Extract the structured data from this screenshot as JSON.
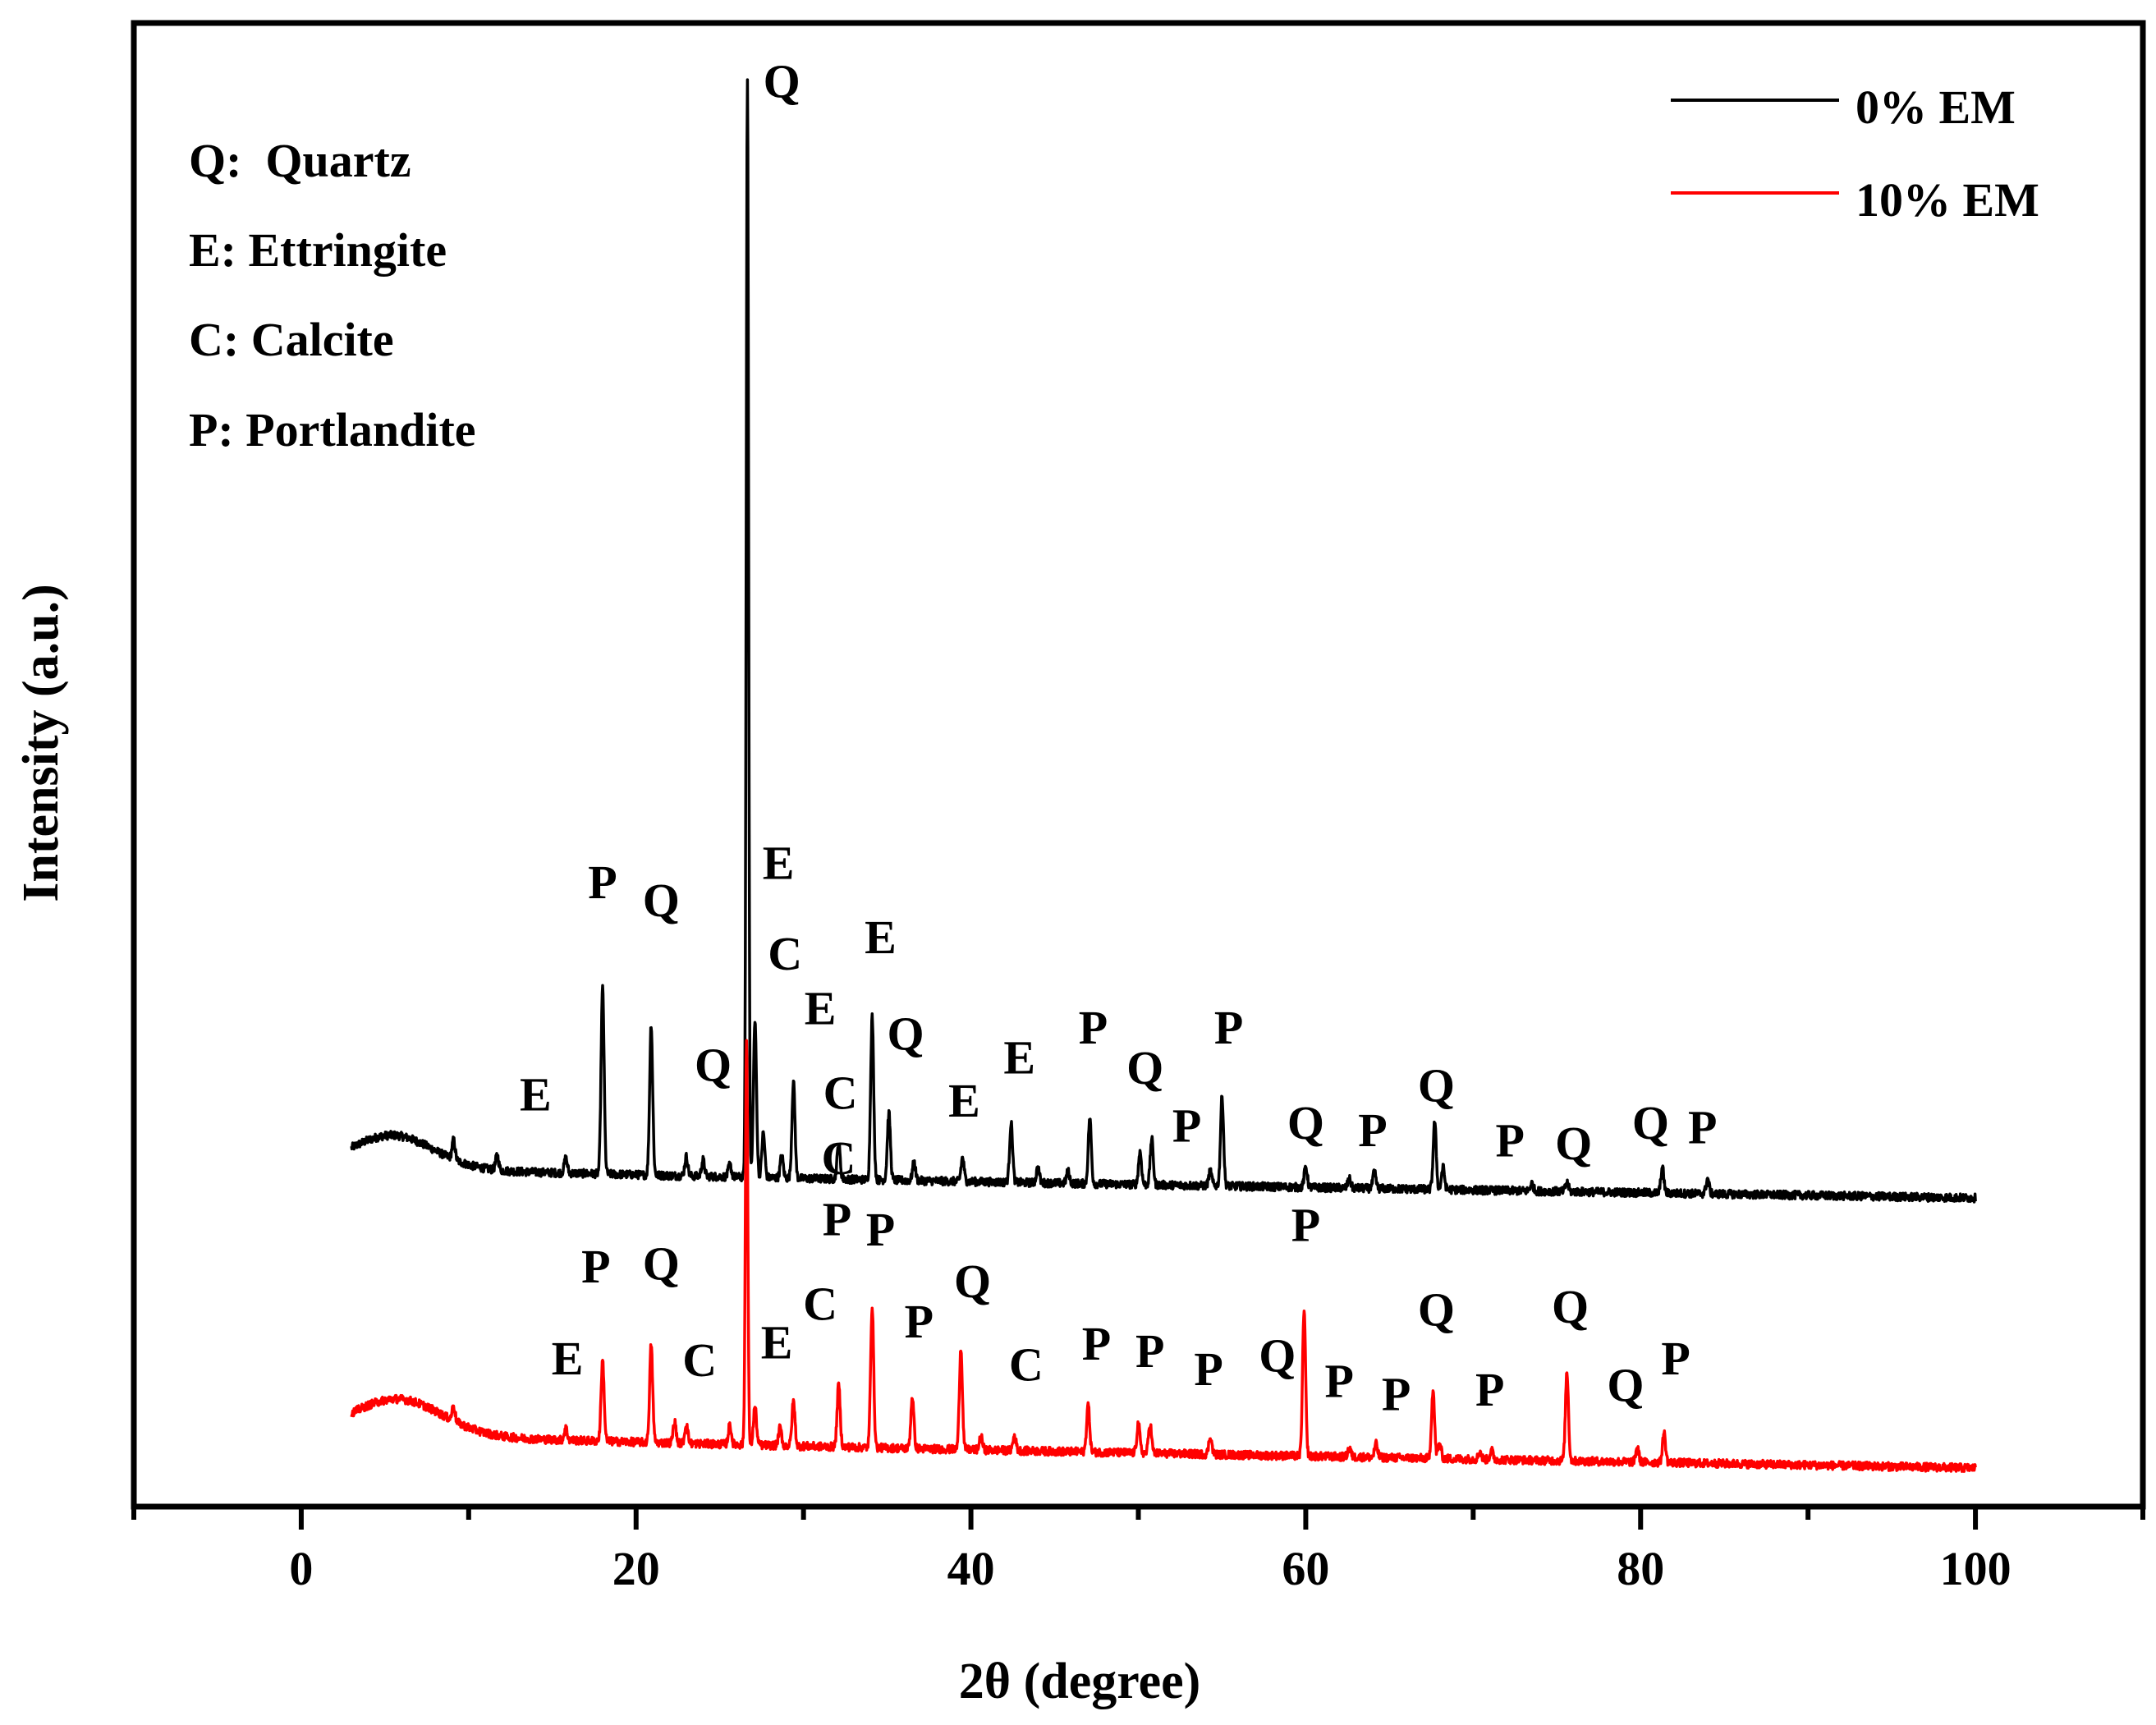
{
  "chart_data": {
    "type": "line",
    "xlabel": "2θ (degree)",
    "ylabel": "Intensity (a.u.)",
    "xlim": [
      -10,
      110
    ],
    "ylim": [
      0,
      100
    ],
    "x_ticks": [
      0,
      20,
      40,
      60,
      80,
      100
    ],
    "x_tick_labels": [
      "0",
      "20",
      "40",
      "60",
      "80",
      "100"
    ],
    "x_minor_ticks": [
      -10,
      10,
      30,
      50,
      70,
      90,
      110
    ],
    "y_ticks": "none",
    "grid": false,
    "legend_position": "top-right",
    "phase_key": [
      {
        "code": "Q",
        "text": "Q:  Quartz"
      },
      {
        "code": "E",
        "text": "E: Ettringite"
      },
      {
        "code": "C",
        "text": "C: Calcite"
      },
      {
        "code": "P",
        "text": "P: Portlandite"
      }
    ],
    "series": [
      {
        "name": "0% EM",
        "color": "#000000",
        "baseline_start": 22.5,
        "baseline_end": 20.8,
        "hump": {
          "center": 5.5,
          "height": 2.2,
          "width": 2.4
        },
        "peaks": [
          {
            "x": 9.1,
            "h": 1.3
          },
          {
            "x": 11.7,
            "h": 1.0
          },
          {
            "x": 15.8,
            "h": 1.0
          },
          {
            "x": 18.0,
            "h": 12.5
          },
          {
            "x": 20.9,
            "h": 10.2
          },
          {
            "x": 23.0,
            "h": 1.3
          },
          {
            "x": 24.0,
            "h": 1.1
          },
          {
            "x": 25.6,
            "h": 0.8
          },
          {
            "x": 26.65,
            "h": 74.0
          },
          {
            "x": 27.1,
            "h": 10.5
          },
          {
            "x": 27.6,
            "h": 3.0
          },
          {
            "x": 28.7,
            "h": 1.5
          },
          {
            "x": 29.4,
            "h": 6.5
          },
          {
            "x": 32.1,
            "h": 2.4
          },
          {
            "x": 34.1,
            "h": 11.0
          },
          {
            "x": 35.1,
            "h": 4.5
          },
          {
            "x": 36.6,
            "h": 1.2
          },
          {
            "x": 39.5,
            "h": 1.6
          },
          {
            "x": 42.4,
            "h": 4.0
          },
          {
            "x": 44.0,
            "h": 1.0
          },
          {
            "x": 45.8,
            "h": 0.8
          },
          {
            "x": 47.1,
            "h": 4.4
          },
          {
            "x": 50.1,
            "h": 2.2
          },
          {
            "x": 50.8,
            "h": 3.1
          },
          {
            "x": 54.3,
            "h": 1.0
          },
          {
            "x": 55.0,
            "h": 6.0
          },
          {
            "x": 60.0,
            "h": 1.4
          },
          {
            "x": 62.6,
            "h": 0.6
          },
          {
            "x": 64.1,
            "h": 1.1
          },
          {
            "x": 67.7,
            "h": 4.5
          },
          {
            "x": 68.2,
            "h": 1.5
          },
          {
            "x": 73.5,
            "h": 0.5
          },
          {
            "x": 75.6,
            "h": 0.6
          },
          {
            "x": 81.3,
            "h": 1.7
          },
          {
            "x": 84.0,
            "h": 1.0
          }
        ],
        "labels": [
          {
            "text": "E",
            "x": 14.0,
            "y": 26.7
          },
          {
            "text": "P",
            "x": 18.0,
            "y": 41.0
          },
          {
            "text": "Q",
            "x": 21.5,
            "y": 39.8
          },
          {
            "text": "Q",
            "x": 24.6,
            "y": 28.7
          },
          {
            "text": "Q",
            "x": 28.7,
            "y": 95.0
          },
          {
            "text": "E",
            "x": 28.5,
            "y": 42.3
          },
          {
            "text": "C",
            "x": 28.9,
            "y": 36.2
          },
          {
            "text": "E",
            "x": 31.0,
            "y": 32.5
          },
          {
            "text": "C",
            "x": 32.2,
            "y": 26.8
          },
          {
            "text": "E",
            "x": 34.6,
            "y": 37.3
          },
          {
            "text": "Q",
            "x": 36.1,
            "y": 30.8
          },
          {
            "text": "E",
            "x": 39.6,
            "y": 26.3
          },
          {
            "text": "E",
            "x": 42.9,
            "y": 29.2
          },
          {
            "text": "P",
            "x": 47.3,
            "y": 31.2
          },
          {
            "text": "Q",
            "x": 50.4,
            "y": 28.5
          },
          {
            "text": "P",
            "x": 52.9,
            "y": 24.6
          },
          {
            "text": "P",
            "x": 55.4,
            "y": 31.2
          },
          {
            "text": "Q",
            "x": 60.0,
            "y": 24.8
          },
          {
            "text": "P",
            "x": 64.0,
            "y": 24.3
          },
          {
            "text": "Q",
            "x": 67.8,
            "y": 27.3
          },
          {
            "text": "P",
            "x": 72.2,
            "y": 23.6
          },
          {
            "text": "Q",
            "x": 76.0,
            "y": 23.4
          },
          {
            "text": "Q",
            "x": 80.6,
            "y": 24.8
          },
          {
            "text": "P",
            "x": 83.7,
            "y": 24.5
          }
        ]
      },
      {
        "name": "10% EM",
        "color": "#ff0000",
        "baseline_start": 4.5,
        "baseline_end": 2.6,
        "hump": {
          "center": 5.8,
          "height": 2.4,
          "width": 2.6
        },
        "peaks": [
          {
            "x": 9.1,
            "h": 1.0
          },
          {
            "x": 15.8,
            "h": 0.8
          },
          {
            "x": 18.0,
            "h": 5.4
          },
          {
            "x": 20.9,
            "h": 6.6
          },
          {
            "x": 22.3,
            "h": 1.4
          },
          {
            "x": 23.0,
            "h": 1.3
          },
          {
            "x": 25.6,
            "h": 1.3
          },
          {
            "x": 26.6,
            "h": 27.5
          },
          {
            "x": 27.1,
            "h": 2.6
          },
          {
            "x": 28.6,
            "h": 1.2
          },
          {
            "x": 29.4,
            "h": 3.0
          },
          {
            "x": 32.1,
            "h": 4.2
          },
          {
            "x": 34.1,
            "h": 9.6
          },
          {
            "x": 36.5,
            "h": 3.5
          },
          {
            "x": 39.4,
            "h": 6.8
          },
          {
            "x": 40.6,
            "h": 0.9
          },
          {
            "x": 42.6,
            "h": 1.0
          },
          {
            "x": 47.0,
            "h": 3.2
          },
          {
            "x": 50.0,
            "h": 2.0
          },
          {
            "x": 50.7,
            "h": 2.0
          },
          {
            "x": 54.3,
            "h": 1.2
          },
          {
            "x": 59.9,
            "h": 9.8
          },
          {
            "x": 62.6,
            "h": 0.6
          },
          {
            "x": 64.2,
            "h": 0.9
          },
          {
            "x": 67.6,
            "h": 4.6
          },
          {
            "x": 68.0,
            "h": 1.0
          },
          {
            "x": 70.4,
            "h": 0.5
          },
          {
            "x": 71.1,
            "h": 0.6
          },
          {
            "x": 75.6,
            "h": 6.0
          },
          {
            "x": 79.8,
            "h": 1.0
          },
          {
            "x": 81.4,
            "h": 2.0
          }
        ],
        "labels": [
          {
            "text": "E",
            "x": 15.9,
            "y": 8.9
          },
          {
            "text": "P",
            "x": 17.6,
            "y": 15.1
          },
          {
            "text": "Q",
            "x": 21.5,
            "y": 15.3
          },
          {
            "text": "C",
            "x": 23.8,
            "y": 8.8
          },
          {
            "text": "E",
            "x": 28.4,
            "y": 10.0
          },
          {
            "text": "C",
            "x": 31.0,
            "y": 12.6
          },
          {
            "text": "P",
            "x": 32.0,
            "y": 18.3
          },
          {
            "text": "C",
            "x": 32.1,
            "y": 22.4
          },
          {
            "text": "P",
            "x": 34.6,
            "y": 17.6
          },
          {
            "text": "P",
            "x": 36.9,
            "y": 11.4
          },
          {
            "text": "Q",
            "x": 40.1,
            "y": 14.1
          },
          {
            "text": "C",
            "x": 43.3,
            "y": 8.5
          },
          {
            "text": "P",
            "x": 47.5,
            "y": 9.9
          },
          {
            "text": "P",
            "x": 50.7,
            "y": 9.4
          },
          {
            "text": "P",
            "x": 54.2,
            "y": 8.2
          },
          {
            "text": "Q",
            "x": 58.3,
            "y": 9.1
          },
          {
            "text": "P",
            "x": 60.0,
            "y": 17.9
          },
          {
            "text": "P",
            "x": 62.0,
            "y": 7.4
          },
          {
            "text": "P",
            "x": 65.4,
            "y": 6.5
          },
          {
            "text": "Q",
            "x": 67.8,
            "y": 12.2
          },
          {
            "text": "P",
            "x": 71.0,
            "y": 6.8
          },
          {
            "text": "Q",
            "x": 75.8,
            "y": 12.4
          },
          {
            "text": "Q",
            "x": 79.1,
            "y": 7.1
          },
          {
            "text": "P",
            "x": 82.1,
            "y": 8.9
          }
        ]
      }
    ]
  }
}
